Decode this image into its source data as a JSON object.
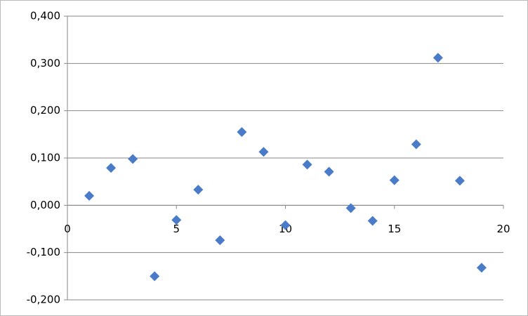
{
  "chart_data": {
    "type": "scatter",
    "x": [
      1,
      2,
      3,
      4,
      5,
      6,
      7,
      8,
      9,
      10,
      11,
      12,
      13,
      14,
      15,
      16,
      17,
      18,
      19
    ],
    "values": [
      0.02,
      0.079,
      0.098,
      -0.15,
      -0.031,
      0.033,
      -0.074,
      0.155,
      0.113,
      -0.042,
      0.086,
      0.071,
      -0.006,
      -0.033,
      0.053,
      0.129,
      0.312,
      0.052,
      -0.132
    ],
    "color": "#4a7bc8",
    "xlim": [
      0,
      20
    ],
    "xticks": [
      0,
      5,
      10,
      15,
      20
    ],
    "ylim": [
      -0.2,
      0.4
    ],
    "yticks": [
      {
        "value": -0.2,
        "label": "-0,200"
      },
      {
        "value": -0.1,
        "label": "-0,100"
      },
      {
        "value": 0,
        "label": "0,000"
      },
      {
        "value": 0.1,
        "label": "0,100"
      },
      {
        "value": 0.2,
        "label": "0,200"
      },
      {
        "value": 0.3,
        "label": "0,300"
      },
      {
        "value": 0.4,
        "label": "0,400"
      }
    ],
    "grid": true
  }
}
